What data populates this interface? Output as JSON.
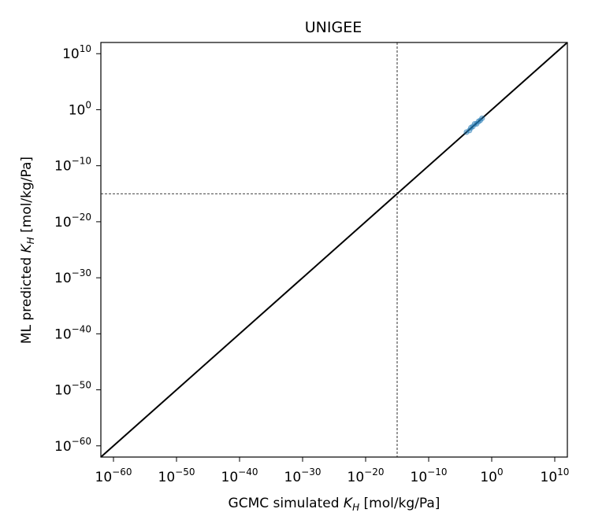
{
  "chart_data": {
    "type": "scatter",
    "title": "UNIGEE",
    "xlabel": {
      "prefix": "GCMC simulated ",
      "symbol": "K",
      "sub": "H",
      "suffix": " [mol/kg/Pa]"
    },
    "ylabel": {
      "prefix": "ML predicted ",
      "symbol": "K",
      "sub": "H",
      "suffix": " [mol/kg/Pa]"
    },
    "scale": "log",
    "xlim": [
      -62,
      12
    ],
    "ylim": [
      -62,
      12
    ],
    "ticks": [
      {
        "exp": -60,
        "base": "10",
        "sup": "−60"
      },
      {
        "exp": -50,
        "base": "10",
        "sup": "−50"
      },
      {
        "exp": -40,
        "base": "10",
        "sup": "−40"
      },
      {
        "exp": -30,
        "base": "10",
        "sup": "−30"
      },
      {
        "exp": -20,
        "base": "10",
        "sup": "−20"
      },
      {
        "exp": -10,
        "base": "10",
        "sup": "−10"
      },
      {
        "exp": 0,
        "base": "10",
        "sup": "0"
      },
      {
        "exp": 10,
        "base": "10",
        "sup": "10"
      }
    ],
    "yticks": [
      {
        "exp": -60,
        "base": "10",
        "sup": "−60"
      },
      {
        "exp": -50,
        "base": "10",
        "sup": "−50"
      },
      {
        "exp": -40,
        "base": "10",
        "sup": "−40"
      },
      {
        "exp": -30,
        "base": "10",
        "sup": "−30"
      },
      {
        "exp": -20,
        "base": "10",
        "sup": "−20"
      },
      {
        "exp": -10,
        "base": "10",
        "sup": "−10"
      },
      {
        "exp": 0,
        "base": "10",
        "sup": "0"
      },
      {
        "exp": 10,
        "base": "10",
        "sup": "10"
      }
    ],
    "identity_line": {
      "from": [
        -62,
        -62
      ],
      "to": [
        12,
        12
      ],
      "color": "#000000"
    },
    "reference_lines": {
      "x": -15,
      "y": -15,
      "style": "dashed",
      "color": "#000000"
    },
    "points": [
      {
        "x": 0.0001,
        "y": 0.0001
      },
      {
        "x": 0.0003,
        "y": 0.0002
      },
      {
        "x": 0.0005,
        "y": 0.0006
      },
      {
        "x": 0.001,
        "y": 0.001
      },
      {
        "x": 0.002,
        "y": 0.003
      },
      {
        "x": 0.004,
        "y": 0.003
      },
      {
        "x": 0.008,
        "y": 0.008
      },
      {
        "x": 0.015,
        "y": 0.012
      },
      {
        "x": 0.03,
        "y": 0.03
      }
    ],
    "point_color": "#1f77b4"
  }
}
